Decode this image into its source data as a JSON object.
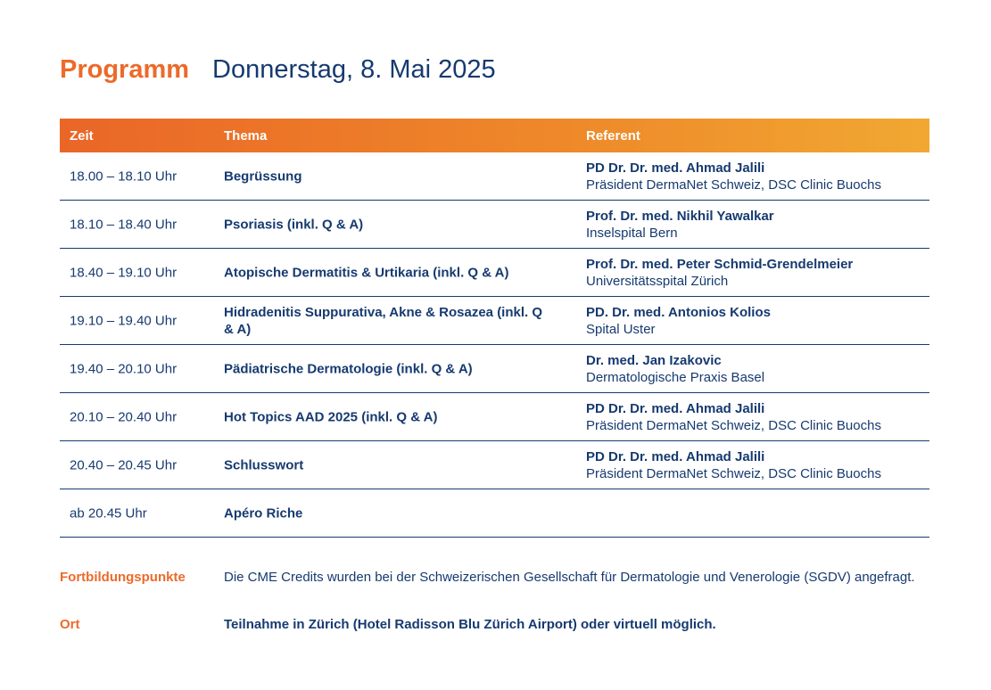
{
  "header": {
    "title": "Programm",
    "date": "Donnerstag, 8. Mai 2025"
  },
  "table": {
    "columns": [
      "Zeit",
      "Thema",
      "Referent"
    ],
    "rows": [
      {
        "time": "18.00 – 18.10 Uhr",
        "topic": "Begrüssung",
        "speaker": "PD Dr. Dr. med. Ahmad Jalili",
        "affiliation": "Präsident DermaNet Schweiz, DSC Clinic Buochs"
      },
      {
        "time": "18.10 – 18.40 Uhr",
        "topic": "Psoriasis (inkl. Q & A)",
        "speaker": "Prof. Dr. med. Nikhil Yawalkar",
        "affiliation": "Inselspital Bern"
      },
      {
        "time": "18.40 – 19.10 Uhr",
        "topic": "Atopische Dermatitis & Urtikaria (inkl. Q & A)",
        "speaker": "Prof. Dr. med. Peter Schmid-Grendelmeier",
        "affiliation": "Universitätsspital Zürich"
      },
      {
        "time": "19.10 – 19.40 Uhr",
        "topic": "Hidradenitis Suppurativa, Akne & Rosazea (inkl. Q & A)",
        "speaker": "PD. Dr. med. Antonios Kolios",
        "affiliation": "Spital Uster"
      },
      {
        "time": "19.40 – 20.10 Uhr",
        "topic": "Pädiatrische Dermatologie (inkl. Q & A)",
        "speaker": "Dr. med. Jan Izakovic",
        "affiliation": "Dermatologische Praxis Basel"
      },
      {
        "time": "20.10 – 20.40 Uhr",
        "topic": "Hot Topics AAD 2025 (inkl. Q & A)",
        "speaker": "PD Dr. Dr. med. Ahmad Jalili",
        "affiliation": "Präsident DermaNet Schweiz, DSC Clinic Buochs"
      },
      {
        "time": "20.40 – 20.45 Uhr",
        "topic": "Schlusswort",
        "speaker": "PD Dr. Dr. med. Ahmad Jalili",
        "affiliation": "Präsident DermaNet Schweiz, DSC Clinic Buochs"
      },
      {
        "time": "ab 20.45 Uhr",
        "topic": "Apéro Riche",
        "speaker": "",
        "affiliation": ""
      }
    ]
  },
  "footer": {
    "credits_label": "Fortbildungspunkte",
    "credits_text": "Die CME Credits wurden bei der Schweizerischen Gesellschaft für Dermatologie und Venerologie (SGDV) angefragt.",
    "location_label": "Ort",
    "location_text": "Teilnahme in Zürich (Hotel Radisson Blu Zürich Airport) oder virtuell möglich."
  },
  "colors": {
    "accent": "#ec6a2a",
    "text": "#163a70"
  }
}
